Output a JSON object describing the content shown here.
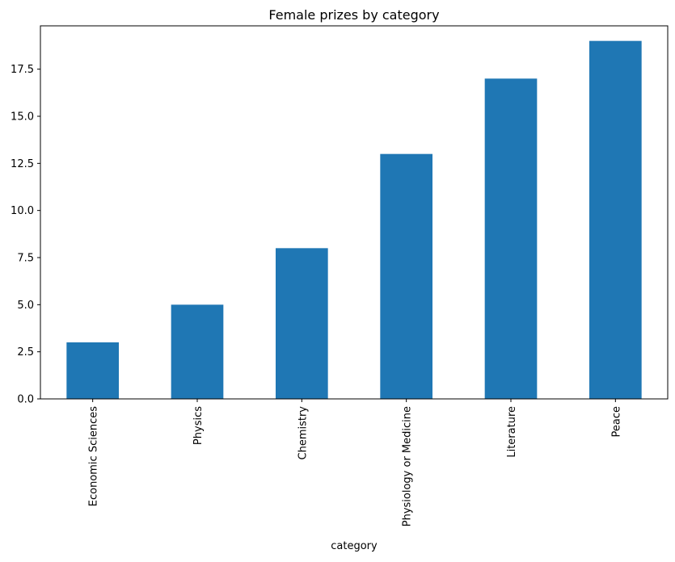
{
  "chart_data": {
    "type": "bar",
    "title": "Female prizes by category",
    "xlabel": "category",
    "ylabel": "",
    "categories": [
      "Economic Sciences",
      "Physics",
      "Chemistry",
      "Physiology or Medicine",
      "Literature",
      "Peace"
    ],
    "values": [
      3,
      5,
      8,
      13,
      17,
      19
    ],
    "ylim": [
      0,
      19.8
    ],
    "yticks": [
      "0.0",
      "2.5",
      "5.0",
      "7.5",
      "10.0",
      "12.5",
      "15.0",
      "17.5"
    ],
    "ytick_values": [
      0,
      2.5,
      5,
      7.5,
      10,
      12.5,
      15,
      17.5
    ],
    "bar_color": "#1f77b4",
    "grid": false,
    "legend": "none"
  }
}
